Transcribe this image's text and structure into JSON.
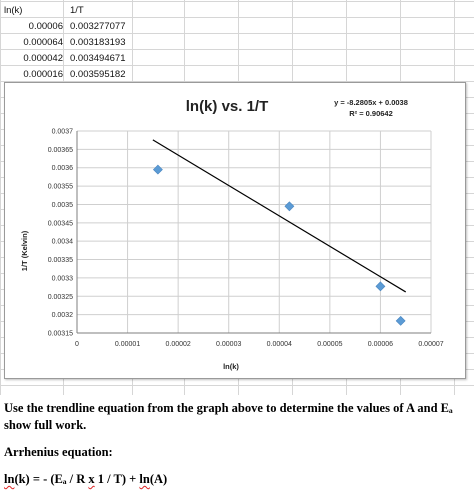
{
  "spreadsheet": {
    "headers": [
      "ln(k)",
      "1/T"
    ],
    "rows": [
      [
        "0.00006",
        "0.003277077"
      ],
      [
        "0.000064",
        "0.003183193"
      ],
      [
        "0.000042",
        "0.003494671"
      ],
      [
        "0.000016",
        "0.003595182"
      ]
    ]
  },
  "chart_data": {
    "type": "scatter",
    "title": "ln(k) vs. 1/T",
    "xlabel": "ln(k)",
    "ylabel": "1/T (Kelvin)",
    "xlim": [
      0,
      7e-05
    ],
    "ylim": [
      0.00315,
      0.0037
    ],
    "x_ticks": [
      "0",
      "0.00001",
      "0.00002",
      "0.00003",
      "0.00004",
      "0.00005",
      "0.00006",
      "0.00007"
    ],
    "y_ticks": [
      "0.00315",
      "0.0032",
      "0.00325",
      "0.0033",
      "0.00335",
      "0.0034",
      "0.00345",
      "0.0035",
      "0.00355",
      "0.0036",
      "0.00365",
      "0.0037"
    ],
    "points": [
      {
        "x": 1.6e-05,
        "y": 0.003595
      },
      {
        "x": 4.2e-05,
        "y": 0.003495
      },
      {
        "x": 6e-05,
        "y": 0.003277
      },
      {
        "x": 6.4e-05,
        "y": 0.003183
      }
    ],
    "trendline": {
      "x_start": 1.5e-05,
      "x_end": 6.5e-05,
      "slope": -8.2805,
      "intercept": 0.0038
    },
    "equation": "y = -8.2805x + 0.0038",
    "r_squared": "R² = 0.90642",
    "grid": true,
    "marker_color": "#5b9bd5",
    "line_color": "#000000"
  },
  "question": {
    "instruction": "Use the trendline equation from the graph above to determine the values of A and Eₐ show full work.",
    "arrhenius_label": "Arrhenius equation:",
    "formula_start": "ln",
    "formula_middle": "(k) = - (Eₐ / R ",
    "formula_x": "x",
    "formula_rest": " 1 / T) + ",
    "formula_ln2": "ln",
    "formula_end": "(A)"
  }
}
